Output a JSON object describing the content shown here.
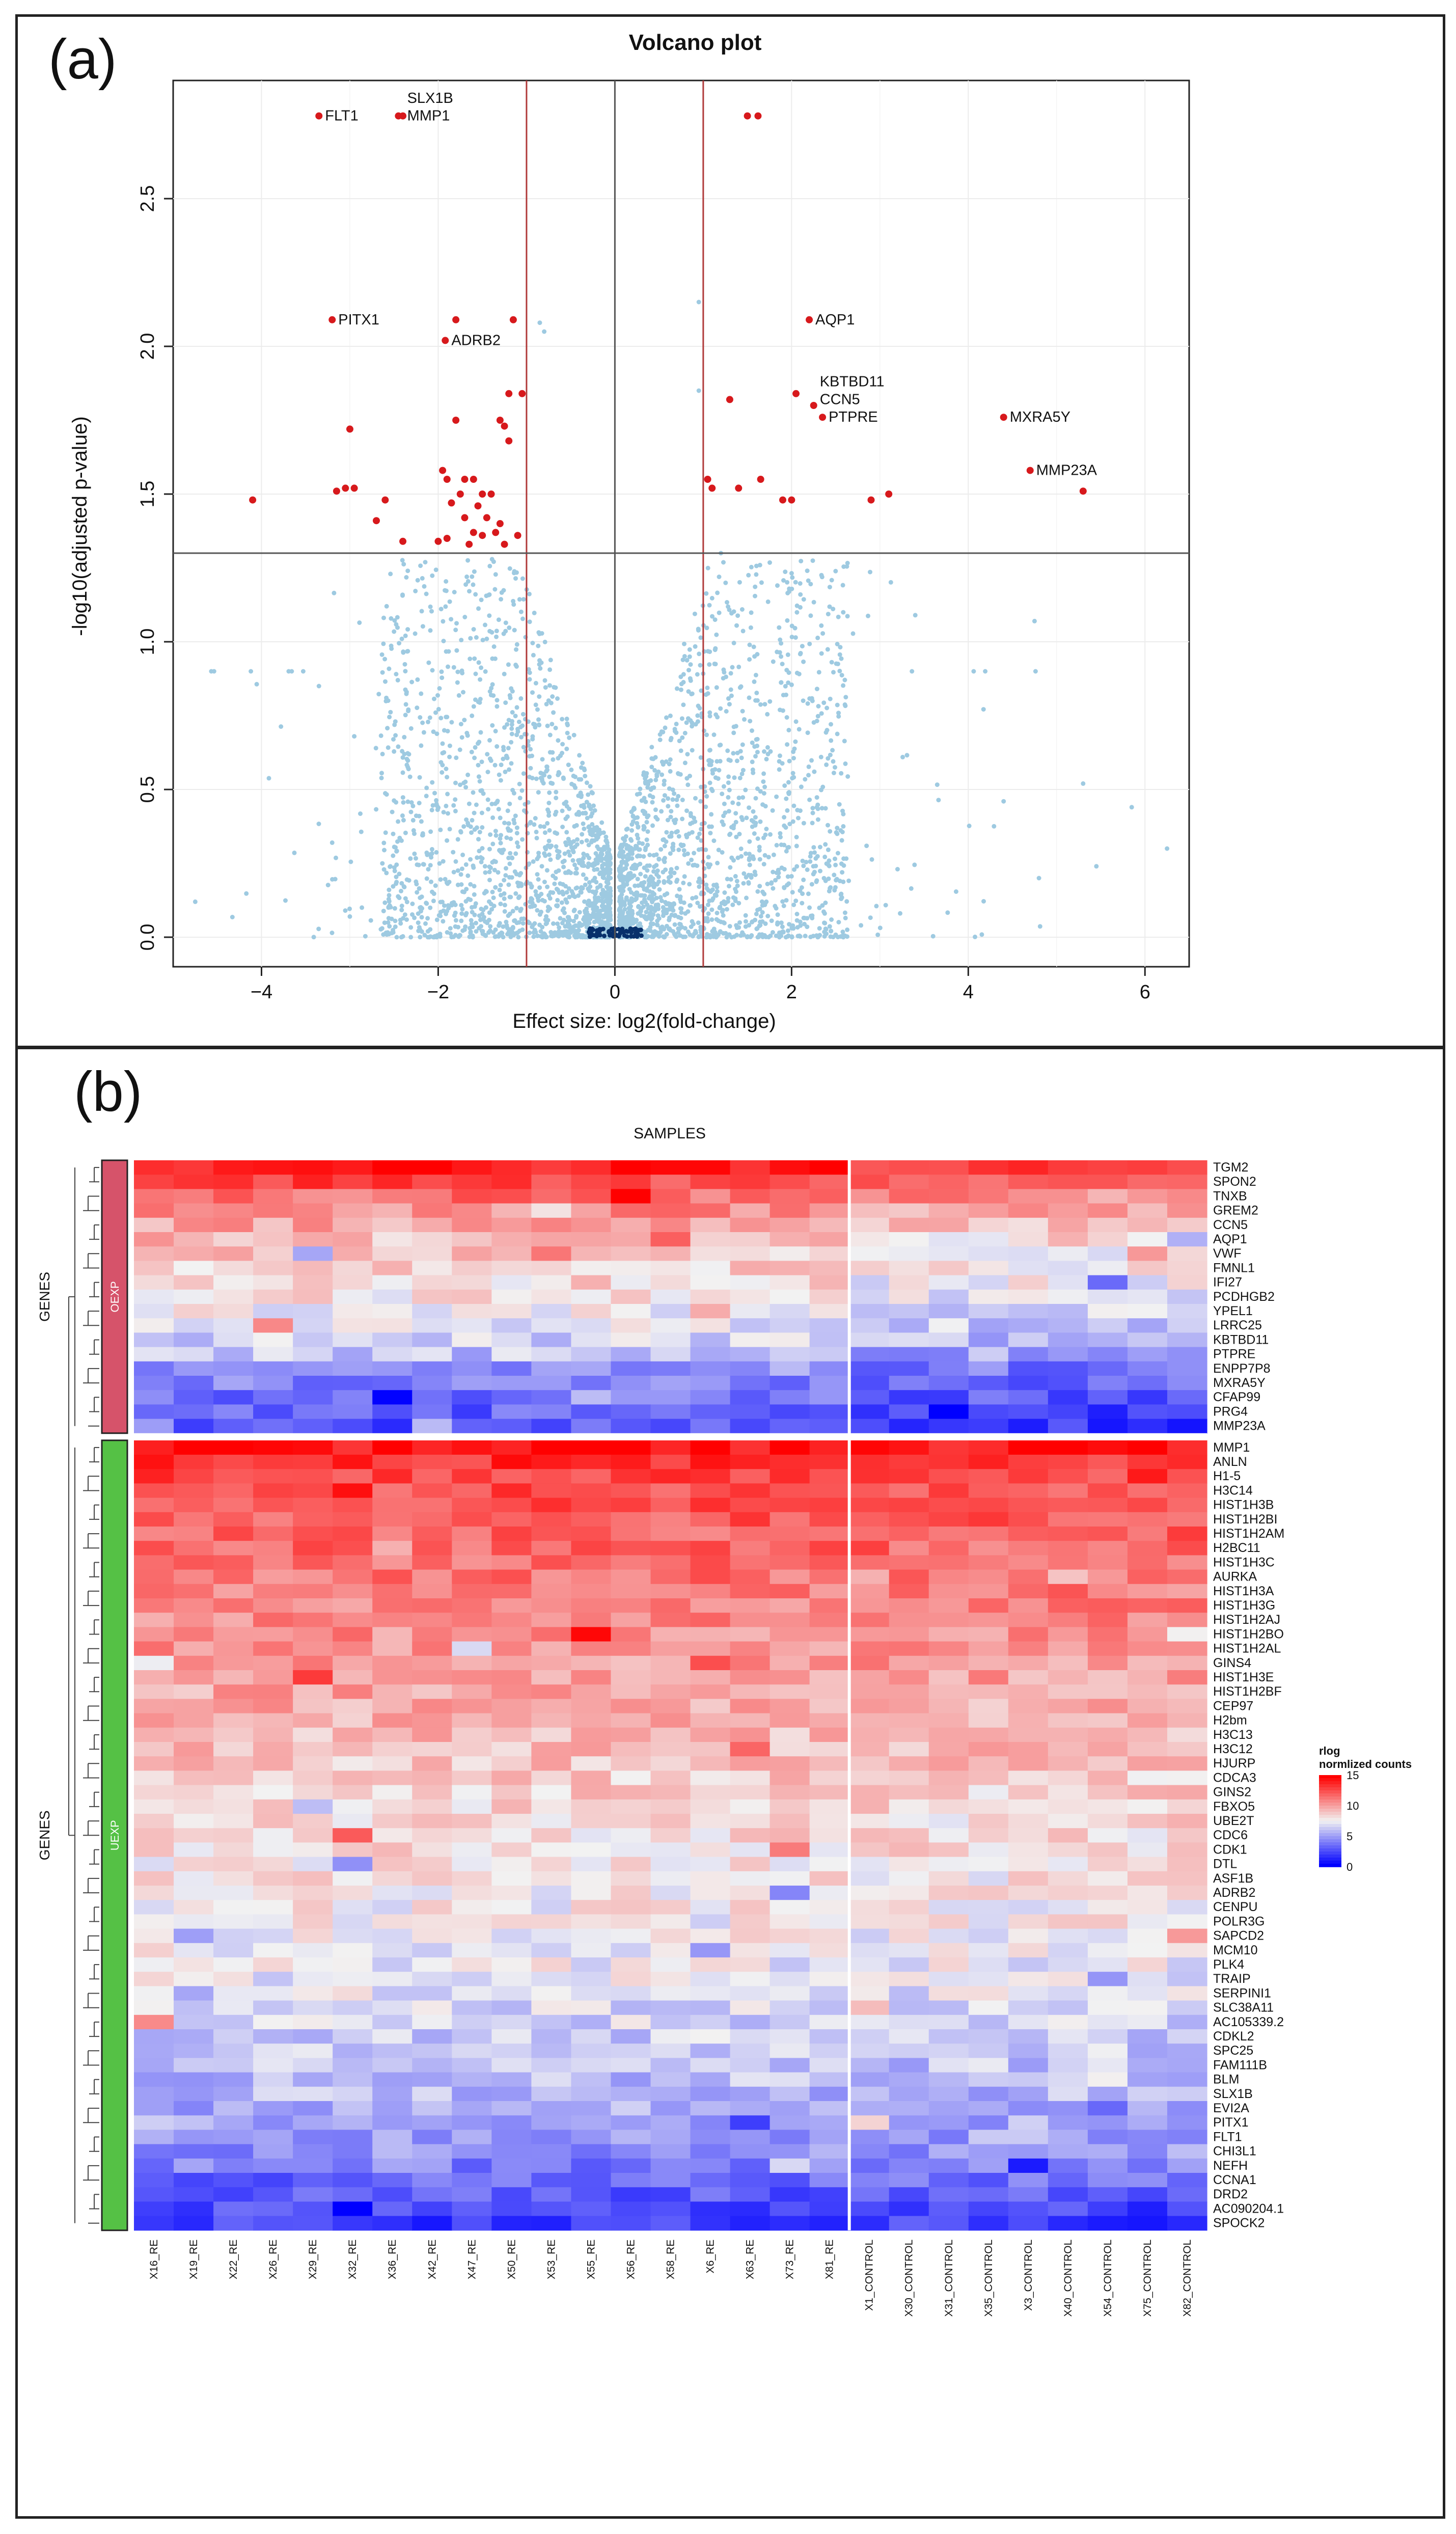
{
  "panel_a": {
    "label": "(a)",
    "chart_data": {
      "type": "scatter",
      "title": "Volcano plot",
      "xlabel": "Effect size: log2(fold-change)",
      "ylabel": "-log10(adjusted p-value)",
      "xlim": [
        -5.0,
        6.5
      ],
      "ylim": [
        -0.1,
        2.9
      ],
      "x_ticks": [
        -4,
        -2,
        0,
        2,
        4,
        6
      ],
      "x_tick_labels": [
        "−4",
        "−2",
        "0",
        "2",
        "4",
        "6"
      ],
      "y_ticks": [
        0.0,
        0.5,
        1.0,
        1.5,
        2.0,
        2.5
      ],
      "y_tick_labels": [
        "0.0",
        "0.5",
        "1.0",
        "1.5",
        "2.0",
        "2.5"
      ],
      "grid": true,
      "threshold_fc": [
        -1,
        1
      ],
      "threshold_p": 1.3,
      "colors": {
        "significant": "#d7191c",
        "not_significant": "#9ecae1",
        "dense": "#08306b",
        "threshold": "#b03a3a",
        "zero_line": "#555555"
      },
      "significant_points": [
        {
          "x": -3.35,
          "y": 2.78
        },
        {
          "x": -2.45,
          "y": 2.78
        },
        {
          "x": -2.4,
          "y": 2.78
        },
        {
          "x": 1.5,
          "y": 2.78
        },
        {
          "x": 1.62,
          "y": 2.78
        },
        {
          "x": -3.2,
          "y": 2.09
        },
        {
          "x": -1.8,
          "y": 2.09
        },
        {
          "x": -1.15,
          "y": 2.09
        },
        {
          "x": -1.92,
          "y": 2.02
        },
        {
          "x": 2.2,
          "y": 2.09
        },
        {
          "x": -1.2,
          "y": 1.84
        },
        {
          "x": -1.05,
          "y": 1.84
        },
        {
          "x": 1.3,
          "y": 1.82
        },
        {
          "x": 2.05,
          "y": 1.84
        },
        {
          "x": 2.25,
          "y": 1.8
        },
        {
          "x": 2.35,
          "y": 1.76
        },
        {
          "x": 4.4,
          "y": 1.76
        },
        {
          "x": -1.8,
          "y": 1.75
        },
        {
          "x": -1.3,
          "y": 1.75
        },
        {
          "x": -1.25,
          "y": 1.73
        },
        {
          "x": -3.0,
          "y": 1.72
        },
        {
          "x": -1.2,
          "y": 1.68
        },
        {
          "x": -1.95,
          "y": 1.58
        },
        {
          "x": 4.7,
          "y": 1.58
        },
        {
          "x": -1.9,
          "y": 1.55
        },
        {
          "x": -1.7,
          "y": 1.55
        },
        {
          "x": -1.6,
          "y": 1.55
        },
        {
          "x": 1.05,
          "y": 1.55
        },
        {
          "x": 1.1,
          "y": 1.52
        },
        {
          "x": 1.65,
          "y": 1.55
        },
        {
          "x": -3.15,
          "y": 1.51
        },
        {
          "x": -3.05,
          "y": 1.52
        },
        {
          "x": -2.95,
          "y": 1.52
        },
        {
          "x": -1.75,
          "y": 1.5
        },
        {
          "x": -1.5,
          "y": 1.5
        },
        {
          "x": -1.4,
          "y": 1.5
        },
        {
          "x": 1.4,
          "y": 1.52
        },
        {
          "x": 3.1,
          "y": 1.5
        },
        {
          "x": 5.3,
          "y": 1.51
        },
        {
          "x": -4.1,
          "y": 1.48
        },
        {
          "x": -2.6,
          "y": 1.48
        },
        {
          "x": -1.85,
          "y": 1.47
        },
        {
          "x": -1.55,
          "y": 1.46
        },
        {
          "x": 1.9,
          "y": 1.48
        },
        {
          "x": 2.0,
          "y": 1.48
        },
        {
          "x": 2.9,
          "y": 1.48
        },
        {
          "x": -2.7,
          "y": 1.41
        },
        {
          "x": -1.7,
          "y": 1.42
        },
        {
          "x": -1.45,
          "y": 1.42
        },
        {
          "x": -1.3,
          "y": 1.4
        },
        {
          "x": -1.6,
          "y": 1.37
        },
        {
          "x": -1.5,
          "y": 1.36
        },
        {
          "x": -1.35,
          "y": 1.37
        },
        {
          "x": -1.1,
          "y": 1.36
        },
        {
          "x": -2.4,
          "y": 1.34
        },
        {
          "x": -2.0,
          "y": 1.34
        },
        {
          "x": -1.65,
          "y": 1.33
        },
        {
          "x": -1.25,
          "y": 1.33
        },
        {
          "x": -1.9,
          "y": 1.35
        }
      ],
      "labeled_genes": [
        {
          "gene": "FLT1",
          "x": -3.35,
          "y": 2.78
        },
        {
          "gene": "SLX1B",
          "x": -2.42,
          "y": 2.84
        },
        {
          "gene": "MMP1",
          "x": -2.42,
          "y": 2.78
        },
        {
          "gene": "PITX1",
          "x": -3.2,
          "y": 2.09
        },
        {
          "gene": "ADRB2",
          "x": -1.92,
          "y": 2.02
        },
        {
          "gene": "AQP1",
          "x": 2.2,
          "y": 2.09
        },
        {
          "gene": "KBTBD11",
          "x": 2.25,
          "y": 1.88
        },
        {
          "gene": "CCN5",
          "x": 2.25,
          "y": 1.82
        },
        {
          "gene": "PTPRE",
          "x": 2.35,
          "y": 1.76
        },
        {
          "gene": "MXRA5Y",
          "x": 4.4,
          "y": 1.76
        },
        {
          "gene": "MMP23A",
          "x": 4.7,
          "y": 1.58
        }
      ]
    }
  },
  "panel_b": {
    "label": "(b)",
    "chart_data": {
      "type": "heatmap",
      "title": "SAMPLES",
      "row_axis_label": "GENES",
      "groups": [
        {
          "name": "OEXP",
          "color": "#d6536a",
          "genes": [
            "TGM2",
            "SPON2",
            "TNXB",
            "GREM2",
            "CCN5",
            "AQP1",
            "VWF",
            "FMNL1",
            "IFI27",
            "PCDHGB2",
            "YPEL1",
            "LRRC25",
            "KBTBD11",
            "PTPRE",
            "ENPP7P8",
            "MXRA5Y",
            "CFAP99",
            "PRG4",
            "MMP23A"
          ]
        },
        {
          "name": "UEXP",
          "color": "#55c145",
          "genes": [
            "MMP1",
            "ANLN",
            "H1-5",
            "H3C14",
            "HIST1H3B",
            "HIST1H2BI",
            "HIST1H2AM",
            "H2BC11",
            "HIST1H3C",
            "AURKA",
            "HIST1H3A",
            "HIST1H3G",
            "HIST1H2AJ",
            "HIST1H2BO",
            "HIST1H2AL",
            "GINS4",
            "HIST1H3E",
            "HIST1H2BF",
            "CEP97",
            "H2bm",
            "H3C13",
            "H3C12",
            "HJURP",
            "CDCA3",
            "GINS2",
            "FBXO5",
            "UBE2T",
            "CDC6",
            "CDK1",
            "DTL",
            "ASF1B",
            "ADRB2",
            "CENPU",
            "POLR3G",
            "SAPCD2",
            "MCM10",
            "PLK4",
            "TRAIP",
            "SERPINI1",
            "SLC38A11",
            "AC105339.2",
            "CDKL2",
            "SPC25",
            "FAM111B",
            "BLM",
            "SLX1B",
            "EVI2A",
            "PITX1",
            "FLT1",
            "CHI3L1",
            "NEFH",
            "CCNA1",
            "DRD2",
            "AC090204.1",
            "SPOCK2"
          ]
        }
      ],
      "samples_re": [
        "X16_RE",
        "X19_RE",
        "X22_RE",
        "X26_RE",
        "X29_RE",
        "X32_RE",
        "X36_RE",
        "X42_RE",
        "X47_RE",
        "X50_RE",
        "X53_RE",
        "X55_RE",
        "X56_RE",
        "X58_RE",
        "X6_RE",
        "X63_RE",
        "X73_RE",
        "X81_RE"
      ],
      "samples_control": [
        "X1_CONTROL",
        "X30_CONTROL",
        "X31_CONTROL",
        "X35_CONTROL",
        "X3_CONTROL",
        "X40_CONTROL",
        "X54_CONTROL",
        "X75_CONTROL",
        "X82_CONTROL"
      ],
      "color_scale": {
        "min": 0,
        "mid": 7.5,
        "max": 15,
        "low": "#0000ff",
        "mid_color": "#f2f2f2",
        "high": "#ff0000"
      },
      "legend": {
        "title_line1": "rlog",
        "title_line2": "normlized counts",
        "ticks": [
          "15",
          "10",
          "5",
          "0"
        ]
      },
      "row_means_oexp": [
        14.2,
        12.8,
        11.5,
        10.7,
        9.8,
        9.2,
        8.9,
        8.6,
        8.3,
        8.0,
        7.6,
        7.1,
        6.5,
        6.0,
        4.6,
        4.0,
        3.6,
        3.1,
        2.6
      ],
      "row_means_uexp": [
        14.6,
        13.4,
        13.0,
        12.6,
        12.4,
        12.2,
        12.0,
        11.8,
        11.6,
        11.4,
        11.2,
        11.0,
        10.8,
        10.6,
        10.4,
        10.2,
        10.0,
        9.8,
        9.7,
        9.5,
        9.3,
        9.1,
        8.9,
        8.7,
        8.5,
        8.4,
        8.3,
        8.2,
        8.1,
        8.0,
        7.9,
        7.8,
        7.7,
        7.6,
        7.5,
        7.4,
        7.3,
        7.2,
        7.0,
        6.8,
        6.6,
        6.4,
        6.2,
        6.0,
        5.8,
        5.6,
        5.4,
        5.2,
        5.0,
        4.6,
        4.0,
        3.4,
        2.8,
        2.2,
        1.8
      ]
    }
  }
}
